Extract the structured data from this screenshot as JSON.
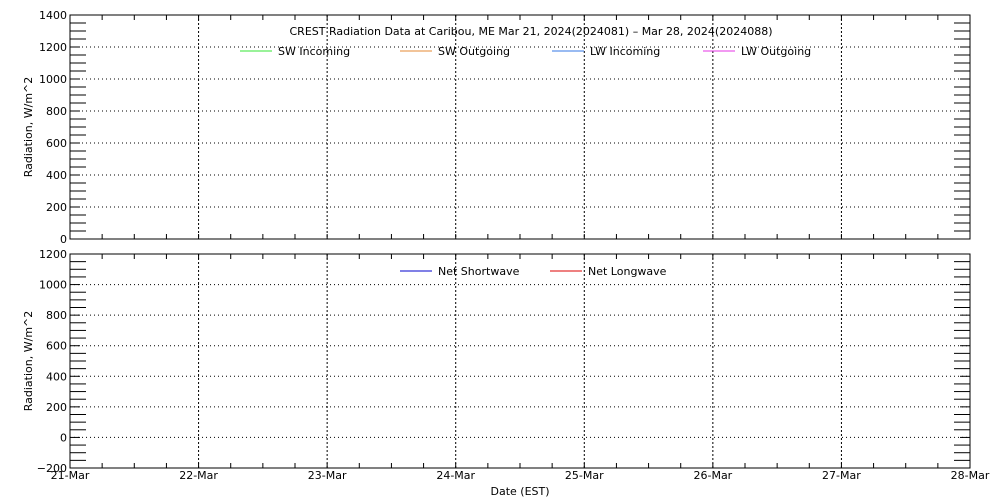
{
  "chart_data": [
    {
      "type": "line",
      "title": "CREST Radiation Data at Caribou, ME   Mar 21, 2024(2024081) – Mar 28, 2024(2024088)",
      "xlabel": "",
      "ylabel": "Radiation, W/m^2",
      "ylim": [
        0,
        1400
      ],
      "yticks": [
        "0",
        "200",
        "400",
        "600",
        "800",
        "1000",
        "1200",
        "1400"
      ],
      "xticks": [
        "21-Mar",
        "22-Mar",
        "23-Mar",
        "24-Mar",
        "25-Mar",
        "26-Mar",
        "27-Mar",
        "28-Mar"
      ],
      "grid": true,
      "legend": "top-center",
      "series": [
        {
          "name": "SW Incoming",
          "color": "#33e633",
          "values": []
        },
        {
          "name": "SW Outgoing",
          "color": "#e68a33",
          "values": []
        },
        {
          "name": "LW Incoming",
          "color": "#3377e6",
          "values": []
        },
        {
          "name": "LW Outgoing",
          "color": "#e633e6",
          "values": []
        }
      ]
    },
    {
      "type": "line",
      "xlabel": "Date (EST)",
      "ylabel": "Radiation, W/m^2",
      "ylim": [
        -200,
        1200
      ],
      "yticks": [
        "−200",
        "0",
        "200",
        "400",
        "600",
        "800",
        "1000",
        "1200"
      ],
      "xticks": [
        "21-Mar",
        "22-Mar",
        "23-Mar",
        "24-Mar",
        "25-Mar",
        "26-Mar",
        "27-Mar",
        "28-Mar"
      ],
      "grid": true,
      "legend": "top-center",
      "series": [
        {
          "name": "Net Shortwave",
          "color": "#0000cc",
          "values": []
        },
        {
          "name": "Net Longwave",
          "color": "#dd0000",
          "values": []
        }
      ]
    }
  ]
}
